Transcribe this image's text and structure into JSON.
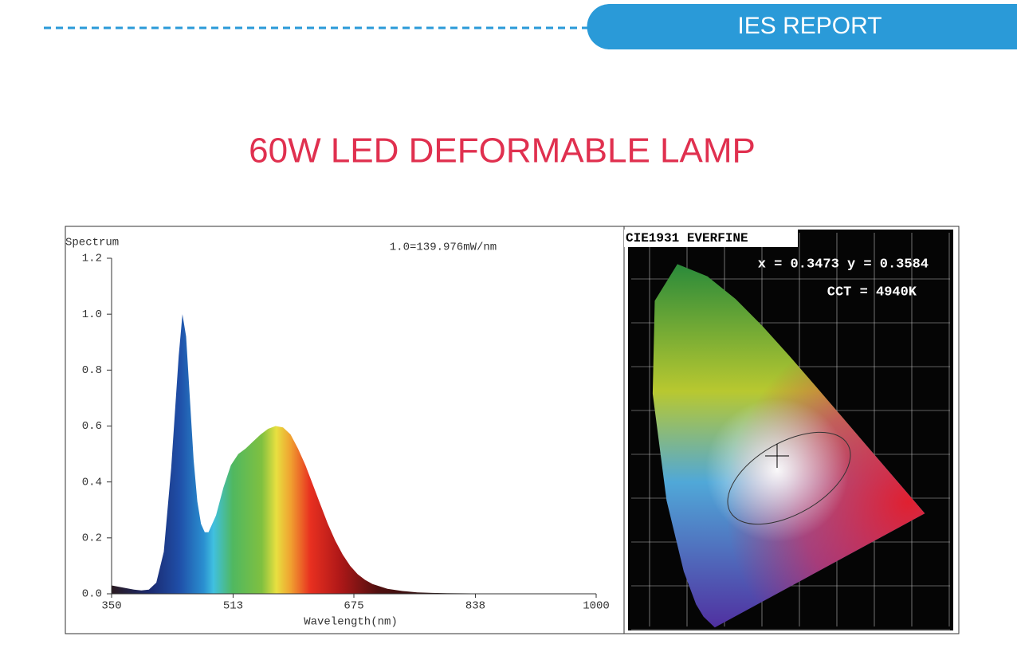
{
  "header": {
    "label": "IES REPORT",
    "title": "60W LED DEFORMABLE LAMP"
  },
  "chart_data": {
    "type": "area",
    "annotation": "1.0=139.976mW/nm",
    "ylabel": "Spectrum",
    "xlabel": "Wavelength(nm)",
    "xlim": [
      350,
      1000
    ],
    "ylim": [
      0,
      1.2
    ],
    "xticks": [
      350,
      513,
      675,
      838,
      1000
    ],
    "yticks": [
      {
        "value": 0,
        "label": "0.0"
      },
      0.2,
      0.4,
      0.6,
      0.8,
      {
        "value": 1,
        "label": "1.0"
      },
      1.2
    ],
    "x": [
      350,
      360,
      370,
      380,
      390,
      400,
      410,
      420,
      430,
      440,
      445,
      450,
      455,
      460,
      465,
      470,
      475,
      480,
      490,
      500,
      510,
      520,
      530,
      540,
      550,
      560,
      570,
      580,
      590,
      600,
      610,
      620,
      630,
      640,
      650,
      660,
      670,
      680,
      690,
      700,
      720,
      740,
      760,
      780,
      800,
      850,
      900,
      1000
    ],
    "values": [
      0.03,
      0.025,
      0.02,
      0.015,
      0.012,
      0.015,
      0.04,
      0.15,
      0.45,
      0.85,
      1.0,
      0.92,
      0.7,
      0.48,
      0.33,
      0.25,
      0.22,
      0.22,
      0.28,
      0.38,
      0.46,
      0.5,
      0.52,
      0.545,
      0.57,
      0.59,
      0.6,
      0.595,
      0.57,
      0.52,
      0.46,
      0.39,
      0.32,
      0.25,
      0.19,
      0.14,
      0.1,
      0.07,
      0.05,
      0.035,
      0.018,
      0.01,
      0.005,
      0.003,
      0.002,
      0.001,
      0,
      0
    ]
  },
  "cie": {
    "title": "CIE1931 EVERFINE",
    "coordinates": "x = 0.3473 y = 0.3584",
    "cct": "CCT = 4940K"
  }
}
